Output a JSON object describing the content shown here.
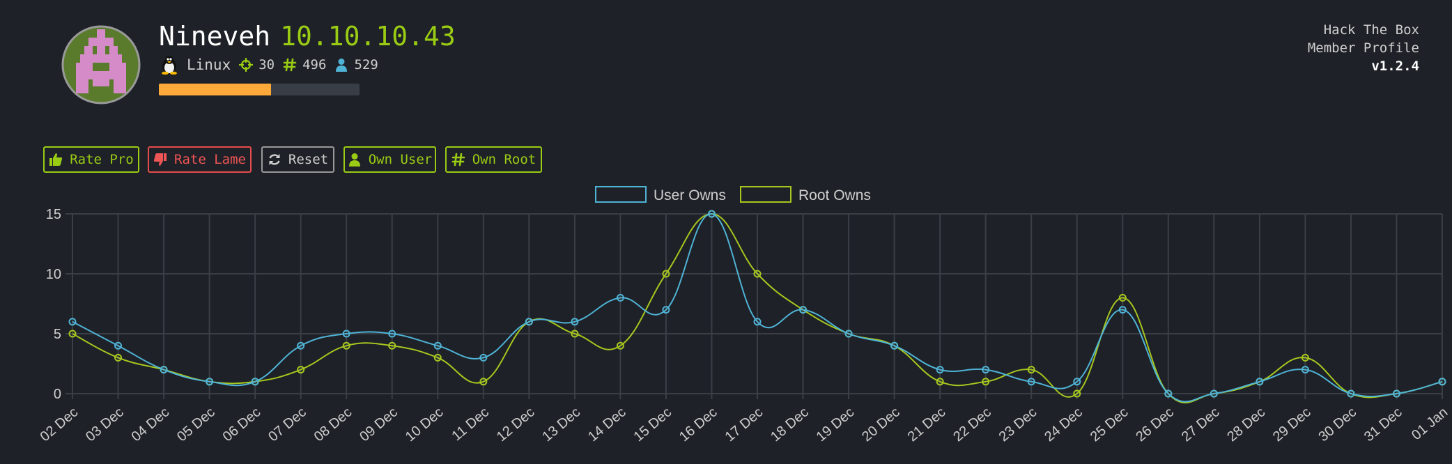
{
  "machine": {
    "name": "Nineveh",
    "ip": "10.10.10.43",
    "os": "Linux",
    "points": "30",
    "root_owns": "496",
    "user_owns": "529",
    "progress": 0.56
  },
  "brand": {
    "line1": "Hack The Box",
    "line2": "Member Profile",
    "version": "v1.2.4"
  },
  "buttons": {
    "rate_pro": "Rate Pro",
    "rate_lame": "Rate Lame",
    "reset": "Reset",
    "own_user": "Own User",
    "own_root": "Own Root"
  },
  "colors": {
    "background": "#1e2127",
    "accent_green": "#9acc14",
    "user_series": "#4fb3d6",
    "root_series": "#a5c71f",
    "danger": "#e74c4c",
    "progress": "#ffa93a"
  },
  "icons": {
    "os": "linux-penguin-icon",
    "points": "crosshairs-icon",
    "root": "hashtag-icon",
    "user": "user-icon",
    "rate_pro": "thumbs-up-icon",
    "rate_lame": "thumbs-down-icon",
    "reset": "refresh-icon",
    "own_user": "user-icon",
    "own_root": "hashtag-icon"
  },
  "chart_data": {
    "type": "line",
    "categories": [
      "02 Dec",
      "03 Dec",
      "04 Dec",
      "05 Dec",
      "06 Dec",
      "07 Dec",
      "08 Dec",
      "09 Dec",
      "10 Dec",
      "11 Dec",
      "12 Dec",
      "13 Dec",
      "14 Dec",
      "15 Dec",
      "16 Dec",
      "17 Dec",
      "18 Dec",
      "19 Dec",
      "20 Dec",
      "21 Dec",
      "22 Dec",
      "23 Dec",
      "24 Dec",
      "25 Dec",
      "26 Dec",
      "27 Dec",
      "28 Dec",
      "29 Dec",
      "30 Dec",
      "31 Dec",
      "01 Jan"
    ],
    "series": [
      {
        "name": "User Owns",
        "color": "#4fb3d6",
        "values": [
          6,
          4,
          2,
          1,
          1,
          4,
          5,
          5,
          4,
          3,
          6,
          6,
          8,
          7,
          15,
          6,
          7,
          5,
          4,
          2,
          2,
          1,
          1,
          7,
          0,
          0,
          1,
          2,
          0,
          0,
          1
        ]
      },
      {
        "name": "Root Owns",
        "color": "#a5c71f",
        "values": [
          5,
          3,
          2,
          1,
          1,
          2,
          4,
          4,
          3,
          1,
          6,
          5,
          4,
          10,
          15,
          10,
          7,
          5,
          4,
          1,
          1,
          2,
          0,
          8,
          0,
          0,
          1,
          3,
          0,
          0,
          1
        ]
      }
    ],
    "y_ticks": [
      0,
      5,
      10,
      15
    ],
    "ylim": [
      0,
      15
    ],
    "grid": true,
    "legend": "top-center"
  }
}
